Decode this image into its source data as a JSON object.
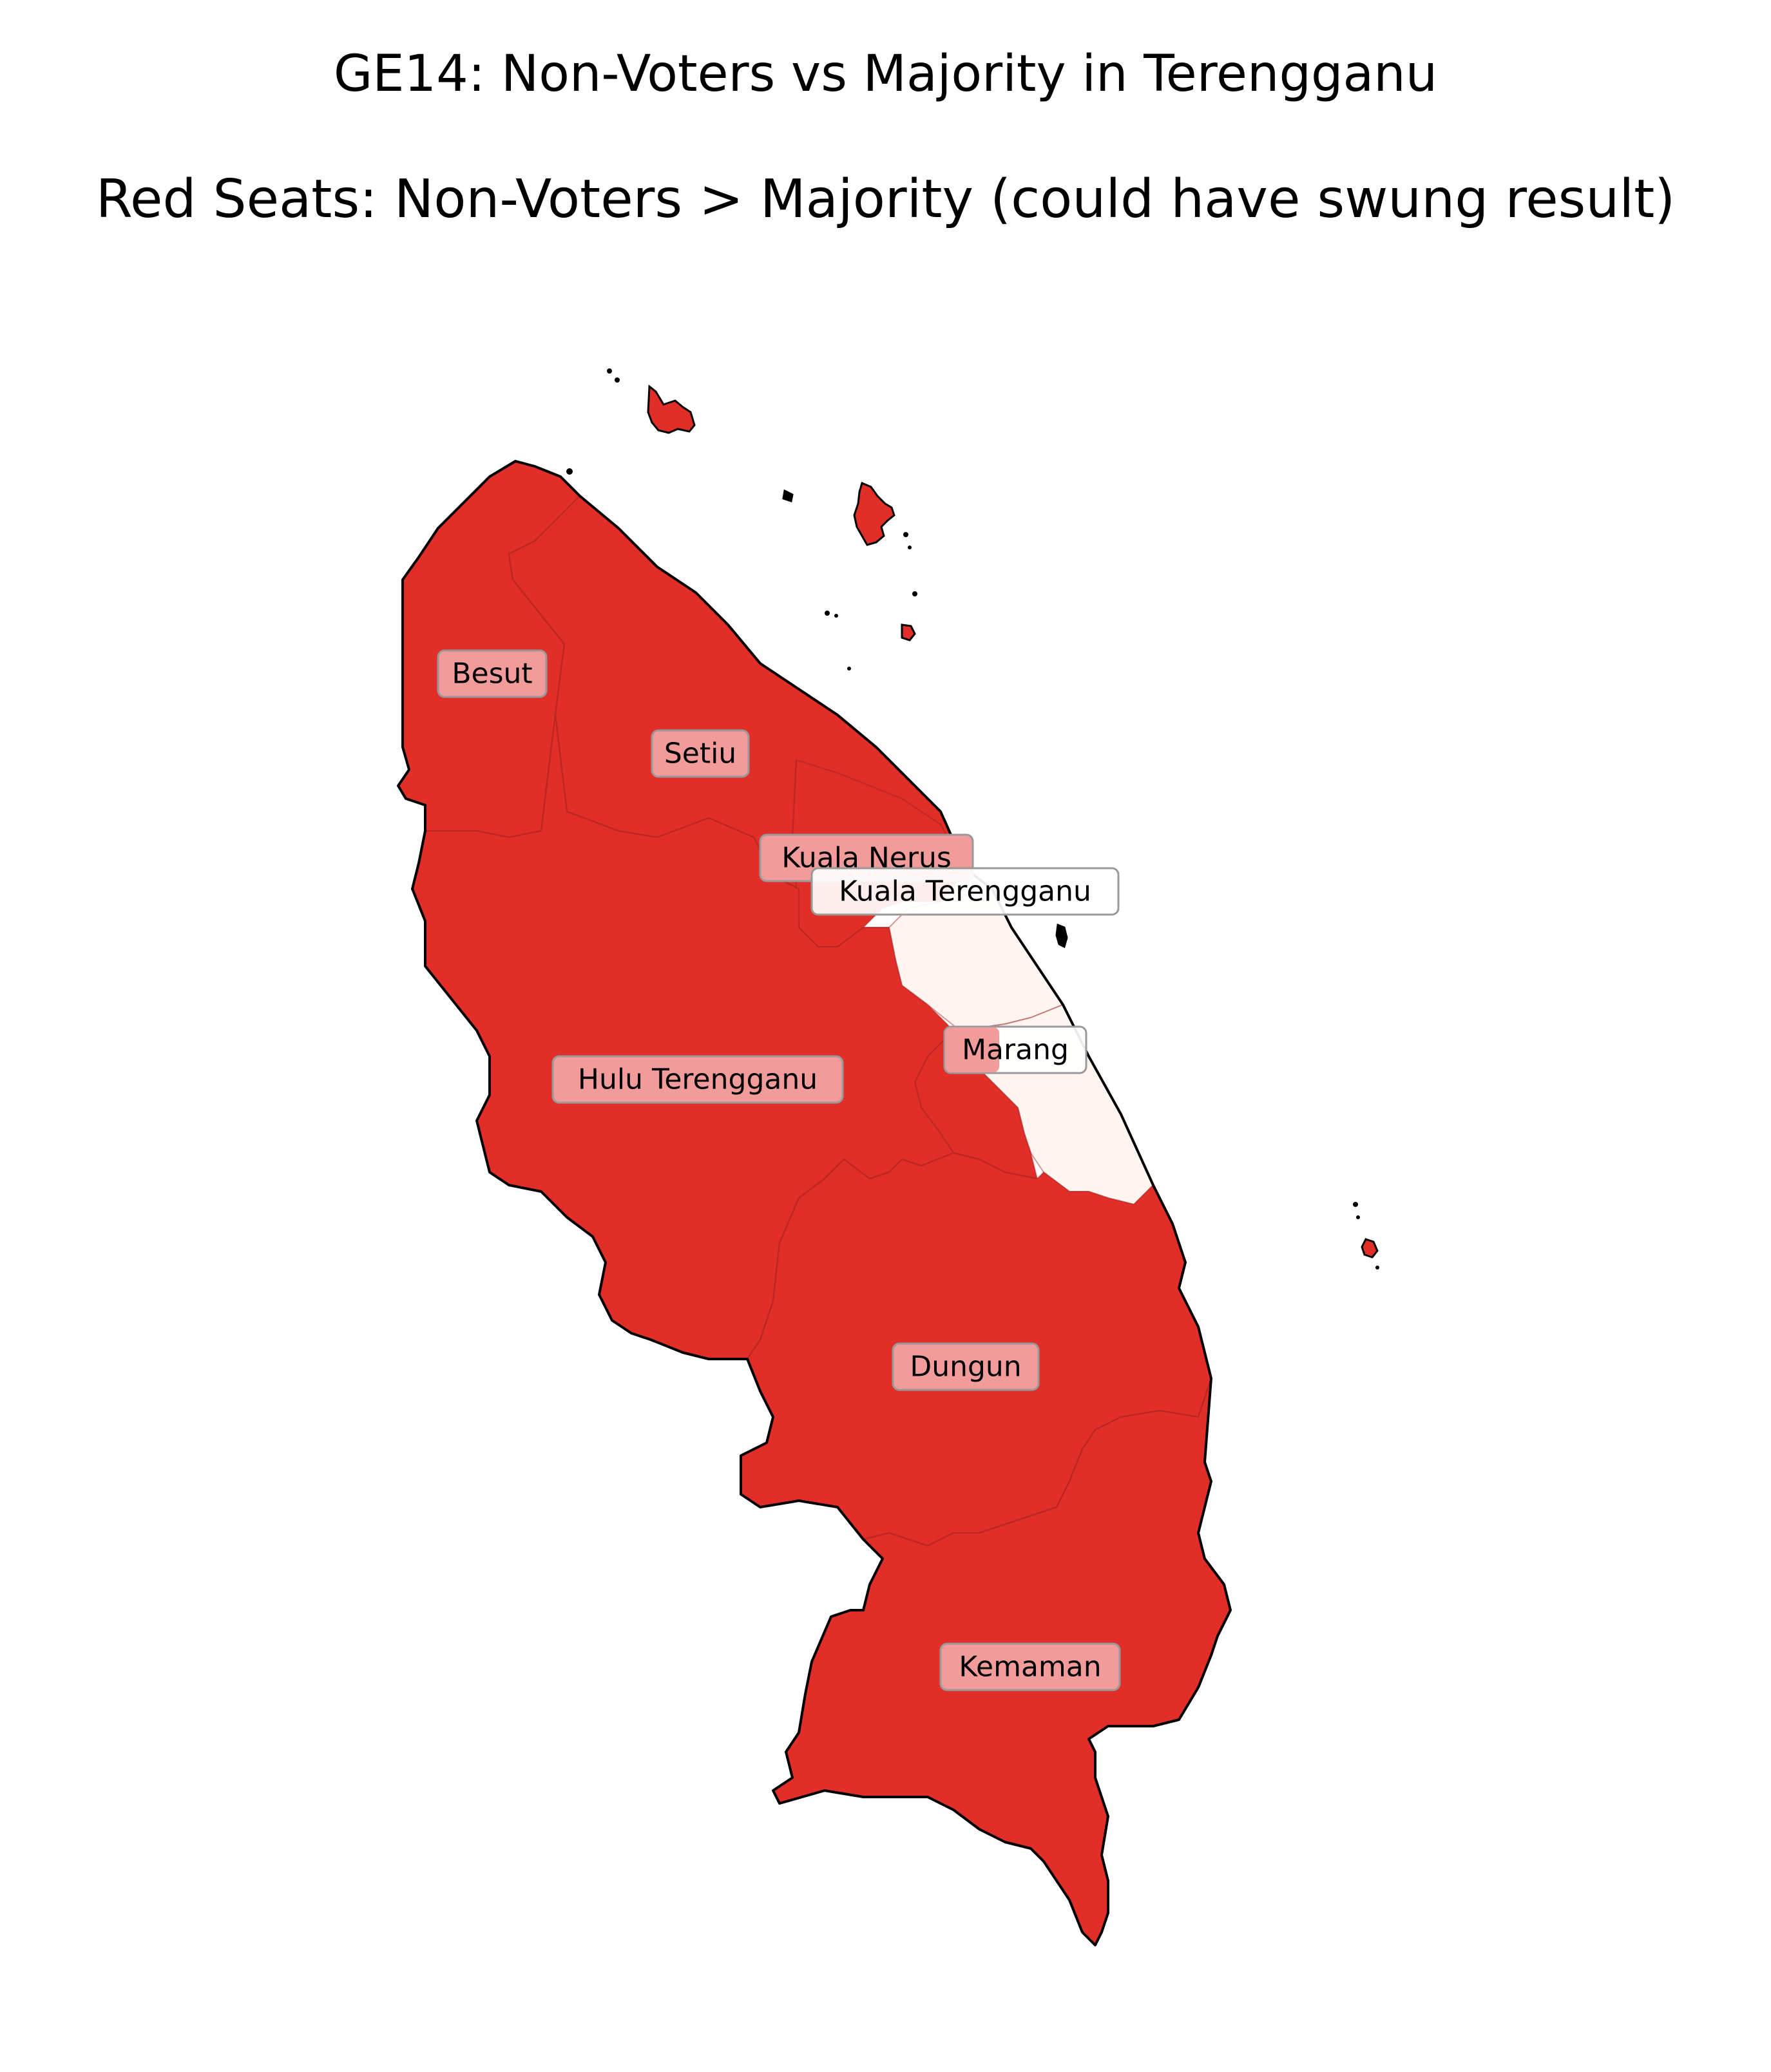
{
  "title": "GE14: Non-Voters vs Majority in Terengganu",
  "subtitle": "Red Seats: Non-Voters > Majority (could have swung result)",
  "colors": {
    "red_seat": "#e12e28",
    "white_seat": "#fff5f0",
    "label_box_red": "#f19c9a",
    "label_box_white": "#ffffff",
    "border": "#000000"
  },
  "legend": {
    "red": "Non-Voters > Majority (could have swung result)"
  },
  "districts": [
    {
      "name": "Besut",
      "status": "red"
    },
    {
      "name": "Setiu",
      "status": "red"
    },
    {
      "name": "Kuala Nerus",
      "status": "red"
    },
    {
      "name": "Kuala Terengganu",
      "status": "white"
    },
    {
      "name": "Marang",
      "status": "red"
    },
    {
      "name": "Hulu Terengganu",
      "status": "red"
    },
    {
      "name": "Dungun",
      "status": "red"
    },
    {
      "name": "Kemaman",
      "status": "red"
    }
  ]
}
